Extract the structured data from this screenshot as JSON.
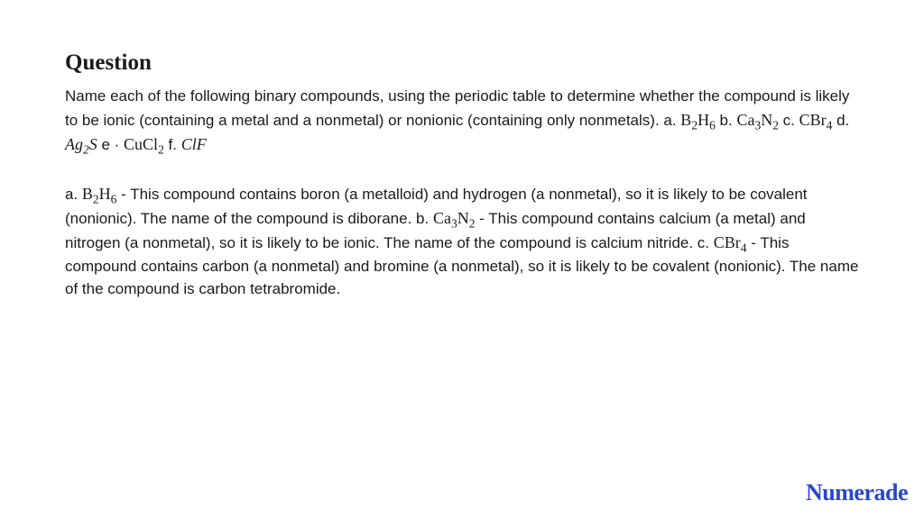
{
  "heading": "Question",
  "question": {
    "intro": "Name each of the following binary compounds, using the periodic table to determine whether the compound is likely to be ionic (containing a metal and a nonmetal) or nonionic (containing only nonmetals). a. ",
    "f1": "B",
    "f1s1": "2",
    "f1b": "H",
    "f1s2": "6",
    "p2": " b. ",
    "f2": "Ca",
    "f2s1": "3",
    "f2b": "N",
    "f2s2": "2",
    "p3": " c. ",
    "f3": "CBr",
    "f3s1": "4",
    "p4": " d. ",
    "f4": "Ag",
    "f4s1": "2",
    "f4b": "S",
    "p5": " e · ",
    "f5": "CuCl",
    "f5s1": "2",
    "p6": " f. ",
    "f6": "ClF"
  },
  "answer": {
    "a1": "a. ",
    "af1": "B",
    "af1s1": "2",
    "af1b": "H",
    "af1s2": "6",
    "a2": " - This compound contains boron (a metalloid) and hydrogen (a nonmetal), so it is likely to be covalent (nonionic). The name of the compound is diborane. b. ",
    "af2": "Ca",
    "af2s1": "3",
    "af2b": "N",
    "af2s2": "2",
    "a3": " - This compound contains calcium (a metal) and nitrogen (a nonmetal), so it is likely to be ionic. The name of the compound is calcium nitride. c. ",
    "af3": "CBr",
    "af3s1": "4",
    "a4": " - This compound contains carbon (a nonmetal) and bromine (a nonmetal), so it is likely to be covalent (nonionic). The name of the compound is carbon tetrabromide."
  },
  "logo": "Numerade",
  "colors": {
    "text": "#1a1a1a",
    "background": "#ffffff",
    "logo": "#2846d0"
  },
  "typography": {
    "heading_fontsize": 25,
    "body_fontsize": 17,
    "formula_fontsize": 18,
    "logo_fontsize": 26
  }
}
